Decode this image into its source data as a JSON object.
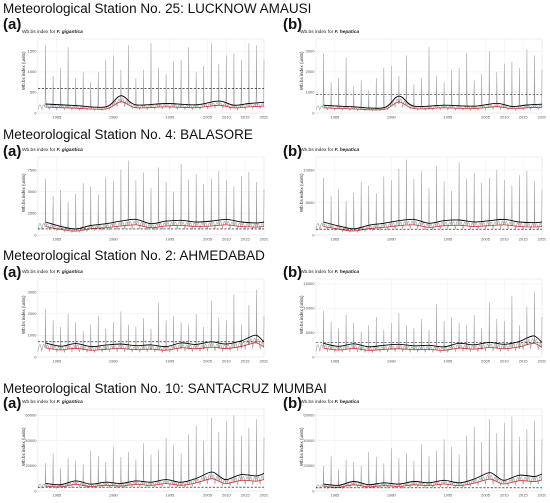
{
  "figure": {
    "sections": [
      {
        "station_title": "Meteorological Station No. 25: LUCKNOW AMAUSI",
        "panels": [
          {
            "letter": "(a)",
            "title_prefix": "Wb.bs index for ",
            "species": "F. gigantica",
            "ylabel": "Wb.bs index (units)",
            "yticks": [
              "0",
              "500",
              "1000",
              "1500"
            ]
          },
          {
            "letter": "(b)",
            "title_prefix": "Wb.bs index for ",
            "species": "F. hepatica",
            "ylabel": "Wb.bs index (units)",
            "yticks": [
              "0",
              "1000",
              "2000",
              "3000"
            ]
          }
        ]
      },
      {
        "station_title": "Meteorological Station No. 4: BALASORE",
        "panels": [
          {
            "letter": "(a)",
            "title_prefix": "Wb.bs index for ",
            "species": "F. gigantica",
            "ylabel": "Wb.bs index (units)",
            "yticks": [
              "0",
              "2500",
              "5000",
              "7500"
            ]
          },
          {
            "letter": "(b)",
            "title_prefix": "Wb.bs index for ",
            "species": "F. hepatica",
            "ylabel": "Wb.bs index (units)",
            "yticks": [
              "0",
              "5000",
              "10000"
            ]
          }
        ]
      },
      {
        "station_title": "Meteorological Station No. 2: AHMEDABAD",
        "panels": [
          {
            "letter": "(a)",
            "title_prefix": "Wb.bs index for ",
            "species": "F. gigantica",
            "ylabel": "Wb.bs index (units)",
            "yticks": [
              "0",
              "1000",
              "2000",
              "3000"
            ]
          },
          {
            "letter": "(b)",
            "title_prefix": "Wb.bs index for ",
            "species": "F. hepatica",
            "ylabel": "Wb.bs index (units)",
            "yticks": [
              "0",
              "5000",
              "10000",
              "15000"
            ]
          }
        ]
      },
      {
        "station_title": "Meteorological Station No. 10: SANTACRUZ MUMBAI",
        "panels": [
          {
            "letter": "(a)",
            "title_prefix": "Wb.bs index for ",
            "species": "F. gigantica",
            "ylabel": "Wb.bs index (units)",
            "yticks": [
              "0",
              "20000",
              "40000",
              "60000"
            ]
          },
          {
            "letter": "(b)",
            "title_prefix": "Wb.bs index for ",
            "species": "F. hepatica",
            "ylabel": "Wb.bs index (units)",
            "yticks": [
              "0",
              "20000",
              "40000",
              "60000"
            ]
          }
        ]
      }
    ]
  },
  "chart_data": [
    {
      "type": "line",
      "station": "LUCKNOW AMAUSI",
      "panel": "(a)",
      "species": "F. gigantica",
      "x_range": [
        1960,
        2020
      ],
      "xticks": [
        "1965",
        "1980",
        "1995",
        "2005",
        "2010",
        "2015",
        "2020"
      ],
      "ylim": [
        0,
        1800
      ],
      "threshold": 600,
      "peaks_x": [
        1962,
        1964,
        1966,
        1968,
        1970,
        1972,
        1974,
        1976,
        1978,
        1980,
        1982,
        1984,
        1986,
        1988,
        1990,
        1992,
        1994,
        1996,
        1998,
        2000,
        2002,
        2004,
        2006,
        2008,
        2010,
        2012,
        2014,
        2016,
        2018,
        2020
      ],
      "peaks_y": [
        1650,
        900,
        1100,
        1600,
        850,
        1000,
        750,
        1000,
        1300,
        1400,
        1050,
        1650,
        850,
        1050,
        1700,
        1100,
        950,
        1250,
        1300,
        1600,
        1000,
        1150,
        1700,
        1200,
        1400,
        1450,
        1300,
        1700,
        1650,
        1300
      ],
      "trend_x": [
        1962,
        1970,
        1978,
        1982,
        1986,
        1994,
        2002,
        2008,
        2012,
        2016,
        2020
      ],
      "trend_y": [
        220,
        180,
        150,
        420,
        200,
        230,
        200,
        290,
        190,
        230,
        260
      ],
      "colors": {
        "spikes": "#9b9b9b",
        "trend": "#000000",
        "smooth": "#d12b2b",
        "threshold": "#000000"
      },
      "grid": true
    },
    {
      "type": "line",
      "station": "LUCKNOW AMAUSI",
      "panel": "(b)",
      "species": "F. hepatica",
      "x_range": [
        1960,
        2020
      ],
      "xticks": [
        "1965",
        "1980",
        "1995",
        "2005",
        "2010",
        "2015",
        "2020"
      ],
      "ylim": [
        0,
        3600
      ],
      "threshold": 900,
      "peaks_x": [
        1962,
        1964,
        1966,
        1968,
        1970,
        1972,
        1974,
        1976,
        1978,
        1980,
        1982,
        1984,
        1986,
        1988,
        1990,
        1992,
        1994,
        1996,
        1998,
        2000,
        2002,
        2004,
        2006,
        2008,
        2010,
        2012,
        2014,
        2016,
        2018,
        2020
      ],
      "peaks_y": [
        2900,
        1500,
        1700,
        2700,
        1300,
        1600,
        1100,
        1700,
        2200,
        2300,
        1800,
        2800,
        1400,
        1700,
        3200,
        1800,
        1500,
        2100,
        2200,
        2900,
        1600,
        1900,
        3000,
        2000,
        2400,
        2500,
        2200,
        3100,
        2800,
        2100
      ],
      "trend_x": [
        1962,
        1970,
        1978,
        1982,
        1986,
        1994,
        2002,
        2008,
        2012,
        2016,
        2020
      ],
      "trend_y": [
        380,
        300,
        260,
        820,
        330,
        380,
        330,
        470,
        320,
        390,
        430
      ],
      "colors": {
        "spikes": "#9b9b9b",
        "trend": "#000000",
        "smooth": "#d12b2b",
        "threshold": "#000000"
      },
      "grid": true
    },
    {
      "type": "line",
      "station": "BALASORE",
      "panel": "(a)",
      "species": "F. gigantica",
      "x_range": [
        1960,
        2020
      ],
      "xticks": [
        "1965",
        "1980",
        "1995",
        "2005",
        "2010",
        "2015",
        "2020"
      ],
      "ylim": [
        0,
        9000
      ],
      "threshold": 700,
      "peaks_x": [
        1962,
        1964,
        1966,
        1968,
        1970,
        1972,
        1974,
        1976,
        1978,
        1980,
        1982,
        1984,
        1986,
        1988,
        1990,
        1992,
        1994,
        1996,
        1998,
        2000,
        2002,
        2004,
        2006,
        2008,
        2010,
        2012,
        2014,
        2016,
        2018,
        2020
      ],
      "peaks_y": [
        6500,
        4500,
        5200,
        3800,
        4800,
        6000,
        5600,
        4700,
        6600,
        6200,
        7500,
        8600,
        6300,
        7200,
        5400,
        7800,
        6100,
        5000,
        8200,
        6400,
        7000,
        5900,
        6500,
        7400,
        6300,
        5600,
        6800,
        7300,
        6100,
        5200
      ],
      "trend_x": [
        1962,
        1966,
        1970,
        1974,
        1978,
        1982,
        1986,
        1990,
        1994,
        1998,
        2002,
        2006,
        2010,
        2014,
        2018,
        2020
      ],
      "trend_y": [
        1500,
        1000,
        700,
        1100,
        1300,
        1600,
        1800,
        1300,
        1600,
        1700,
        1500,
        1600,
        1800,
        1500,
        1400,
        1500
      ],
      "colors": {
        "spikes": "#9b9b9b",
        "trend": "#000000",
        "smooth": "#d12b2b",
        "threshold": "#000000"
      },
      "grid": true
    },
    {
      "type": "line",
      "station": "BALASORE",
      "panel": "(b)",
      "species": "F. hepatica",
      "x_range": [
        1960,
        2020
      ],
      "xticks": [
        "1965",
        "1980",
        "1995",
        "2005",
        "2010",
        "2015",
        "2020"
      ],
      "ylim": [
        0,
        12000
      ],
      "threshold": 900,
      "peaks_x": [
        1962,
        1964,
        1966,
        1968,
        1970,
        1972,
        1974,
        1976,
        1978,
        1980,
        1982,
        1984,
        1986,
        1988,
        1990,
        1992,
        1994,
        1996,
        1998,
        2000,
        2002,
        2004,
        2006,
        2008,
        2010,
        2012,
        2014,
        2016,
        2018,
        2020
      ],
      "peaks_y": [
        8800,
        6000,
        7000,
        5200,
        6500,
        8200,
        7600,
        6400,
        9000,
        8400,
        10200,
        11600,
        8600,
        9800,
        7300,
        10600,
        8300,
        6800,
        11200,
        8700,
        9500,
        8000,
        8800,
        10000,
        8500,
        7600,
        9200,
        9900,
        8300,
        7000
      ],
      "trend_x": [
        1962,
        1966,
        1970,
        1974,
        1978,
        1982,
        1986,
        1990,
        1994,
        1998,
        2002,
        2006,
        2010,
        2014,
        2018,
        2020
      ],
      "trend_y": [
        2000,
        1400,
        950,
        1500,
        1800,
        2200,
        2400,
        1800,
        2200,
        2300,
        2000,
        2200,
        2400,
        2000,
        1900,
        2000
      ],
      "colors": {
        "spikes": "#9b9b9b",
        "trend": "#000000",
        "smooth": "#d12b2b",
        "threshold": "#000000"
      },
      "grid": true
    },
    {
      "type": "line",
      "station": "AHMEDABAD",
      "panel": "(a)",
      "species": "F. gigantica",
      "x_range": [
        1960,
        2020
      ],
      "xticks": [
        "1965",
        "1980",
        "1995",
        "2005",
        "2010",
        "2015",
        "2020"
      ],
      "ylim": [
        0,
        3600
      ],
      "threshold": 700,
      "peaks_x": [
        1962,
        1964,
        1966,
        1968,
        1970,
        1972,
        1974,
        1976,
        1978,
        1980,
        1982,
        1984,
        1986,
        1988,
        1990,
        1992,
        1994,
        1996,
        1998,
        2000,
        2002,
        2004,
        2006,
        2008,
        2010,
        2012,
        2014,
        2016,
        2018,
        2020
      ],
      "peaks_y": [
        2200,
        1700,
        1400,
        2000,
        1600,
        1200,
        1500,
        1900,
        1300,
        1600,
        2100,
        1500,
        1400,
        1800,
        1300,
        2500,
        1700,
        1900,
        1600,
        1500,
        2000,
        1400,
        2600,
        1800,
        1700,
        2900,
        1500,
        2400,
        3100,
        1900
      ],
      "trend_x": [
        1962,
        1966,
        1970,
        1974,
        1978,
        1982,
        1986,
        1990,
        1994,
        1998,
        2002,
        2006,
        2010,
        2014,
        2016,
        2018,
        2020
      ],
      "trend_y": [
        650,
        500,
        620,
        480,
        550,
        600,
        520,
        560,
        480,
        650,
        580,
        700,
        600,
        750,
        900,
        1000,
        700
      ],
      "colors": {
        "spikes": "#9b9b9b",
        "trend": "#000000",
        "smooth": "#d12b2b",
        "threshold": "#000000"
      },
      "grid": true
    },
    {
      "type": "line",
      "station": "AHMEDABAD",
      "panel": "(b)",
      "species": "F. hepatica",
      "x_range": [
        1960,
        2020
      ],
      "xticks": [
        "1965",
        "1980",
        "1995",
        "2005",
        "2010",
        "2015",
        "2020"
      ],
      "ylim": [
        0,
        16000
      ],
      "threshold": 3000,
      "peaks_x": [
        1962,
        1964,
        1966,
        1968,
        1970,
        1972,
        1974,
        1976,
        1978,
        1980,
        1982,
        1984,
        1986,
        1988,
        1990,
        1992,
        1994,
        1996,
        1998,
        2000,
        2002,
        2004,
        2006,
        2008,
        2010,
        2012,
        2014,
        2016,
        2018,
        2020
      ],
      "peaks_y": [
        9500,
        7200,
        6000,
        8600,
        7000,
        5200,
        6500,
        8200,
        5600,
        7000,
        9000,
        6500,
        6000,
        7800,
        5600,
        10800,
        7400,
        8200,
        7000,
        6500,
        8600,
        6000,
        11200,
        7800,
        7400,
        12600,
        6500,
        10400,
        13400,
        8200
      ],
      "trend_x": [
        1962,
        1966,
        1970,
        1974,
        1978,
        1982,
        1986,
        1990,
        1994,
        1998,
        2002,
        2006,
        2010,
        2014,
        2016,
        2018,
        2020
      ],
      "trend_y": [
        2800,
        2200,
        2700,
        2100,
        2400,
        2600,
        2300,
        2400,
        2100,
        2800,
        2500,
        3000,
        2600,
        3200,
        3900,
        4300,
        3000
      ],
      "colors": {
        "spikes": "#9b9b9b",
        "trend": "#000000",
        "smooth": "#d12b2b",
        "threshold": "#000000"
      },
      "grid": true
    },
    {
      "type": "line",
      "station": "SANTACRUZ MUMBAI",
      "panel": "(a)",
      "species": "F. gigantica",
      "x_range": [
        1960,
        2020
      ],
      "xticks": [
        "1965",
        "1980",
        "1995",
        "2005",
        "2010",
        "2015",
        "2020"
      ],
      "ylim": [
        0,
        65000
      ],
      "threshold": 3000,
      "peaks_x": [
        1962,
        1964,
        1966,
        1968,
        1970,
        1972,
        1974,
        1976,
        1978,
        1980,
        1982,
        1984,
        1986,
        1988,
        1990,
        1992,
        1994,
        1996,
        1998,
        2000,
        2002,
        2004,
        2006,
        2008,
        2010,
        2012,
        2014,
        2016,
        2018,
        2020
      ],
      "peaks_y": [
        22000,
        30000,
        18000,
        26000,
        24000,
        21000,
        32000,
        28000,
        23000,
        35000,
        27000,
        31000,
        25000,
        38000,
        29000,
        33000,
        42000,
        36000,
        30000,
        45000,
        52000,
        40000,
        58000,
        47000,
        55000,
        60000,
        44000,
        50000,
        57000,
        42000
      ],
      "trend_x": [
        1962,
        1966,
        1970,
        1974,
        1978,
        1982,
        1986,
        1990,
        1994,
        1998,
        2002,
        2006,
        2008,
        2010,
        2014,
        2018,
        2020
      ],
      "trend_y": [
        6000,
        5000,
        8000,
        5500,
        7000,
        6000,
        8000,
        7000,
        9000,
        7000,
        10000,
        15000,
        12000,
        9000,
        13000,
        12000,
        14000
      ],
      "colors": {
        "spikes": "#9b9b9b",
        "trend": "#000000",
        "smooth": "#d12b2b",
        "threshold": "#000000"
      },
      "grid": true
    },
    {
      "type": "line",
      "station": "SANTACRUZ MUMBAI",
      "panel": "(b)",
      "species": "F. hepatica",
      "x_range": [
        1960,
        2020
      ],
      "xticks": [
        "1965",
        "1980",
        "1995",
        "2005",
        "2010",
        "2015",
        "2020"
      ],
      "ylim": [
        0,
        65000
      ],
      "threshold": 2500,
      "peaks_x": [
        1962,
        1964,
        1966,
        1968,
        1970,
        1972,
        1974,
        1976,
        1978,
        1980,
        1982,
        1984,
        1986,
        1988,
        1990,
        1992,
        1994,
        1996,
        1998,
        2000,
        2002,
        2004,
        2006,
        2008,
        2010,
        2012,
        2014,
        2016,
        2018,
        2020
      ],
      "peaks_y": [
        20000,
        28000,
        17000,
        25000,
        23000,
        20000,
        31000,
        27000,
        22000,
        34000,
        26000,
        30000,
        24000,
        37000,
        28000,
        32000,
        41000,
        35000,
        29000,
        44000,
        51000,
        39000,
        57000,
        46000,
        54000,
        59000,
        43000,
        49000,
        56000,
        41000
      ],
      "trend_x": [
        1962,
        1966,
        1970,
        1974,
        1978,
        1982,
        1986,
        1990,
        1994,
        1998,
        2002,
        2006,
        2008,
        2010,
        2014,
        2018,
        2020
      ],
      "trend_y": [
        5500,
        4500,
        7500,
        5000,
        6500,
        5500,
        7500,
        6500,
        8500,
        6500,
        9500,
        14500,
        11500,
        8500,
        12500,
        11500,
        13500
      ],
      "colors": {
        "spikes": "#9b9b9b",
        "trend": "#000000",
        "smooth": "#d12b2b",
        "threshold": "#000000"
      },
      "grid": true
    }
  ]
}
